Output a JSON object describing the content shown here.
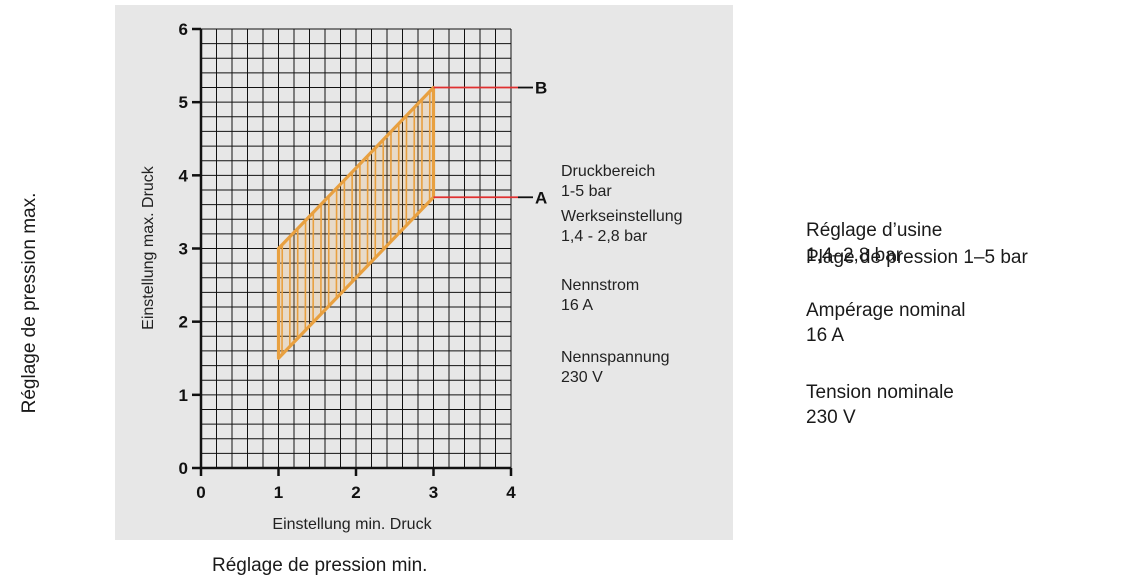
{
  "chart_data": {
    "type": "area",
    "xlabel": "Einstellung min. Druck",
    "ylabel": "Einstellung max. Druck",
    "xlim": [
      0,
      4
    ],
    "ylim": [
      0,
      6
    ],
    "x_ticks": [
      "0",
      "1",
      "2",
      "3",
      "4"
    ],
    "y_ticks": [
      "0",
      "1",
      "2",
      "3",
      "4",
      "5",
      "6"
    ],
    "grid": true,
    "grid_step": 0.2,
    "region": {
      "color": "#e8a040",
      "polygon": [
        {
          "x": 1,
          "y": 1.5
        },
        {
          "x": 1,
          "y": 3
        },
        {
          "x": 3,
          "y": 5.2
        },
        {
          "x": 3,
          "y": 3.7
        }
      ]
    },
    "markers": [
      {
        "label": "B",
        "y": 5.2,
        "color": "#e03030"
      },
      {
        "label": "A",
        "y": 3.7,
        "color": "#e03030"
      }
    ],
    "legend_de": [
      [
        "Druckbereich",
        "1-5 bar"
      ],
      [
        "Werkseinstellung",
        "1,4 - 2,8 bar"
      ],
      [
        "Nennstrom",
        "16 A"
      ],
      [
        "Nennspannung",
        "230 V"
      ]
    ]
  },
  "french": {
    "ylabel": "Réglage de pression max.",
    "xlabel": "Réglage de pression min.",
    "pressure_range": "Plage de pression 1–5 bar",
    "factory_line1": "Réglage d’usine",
    "factory_line2": "1,4–2,8 bar",
    "current_line1": "Ampérage nominal",
    "current_line2": "16 A",
    "voltage_line1": "Tension nominale",
    "voltage_line2": "230 V"
  }
}
